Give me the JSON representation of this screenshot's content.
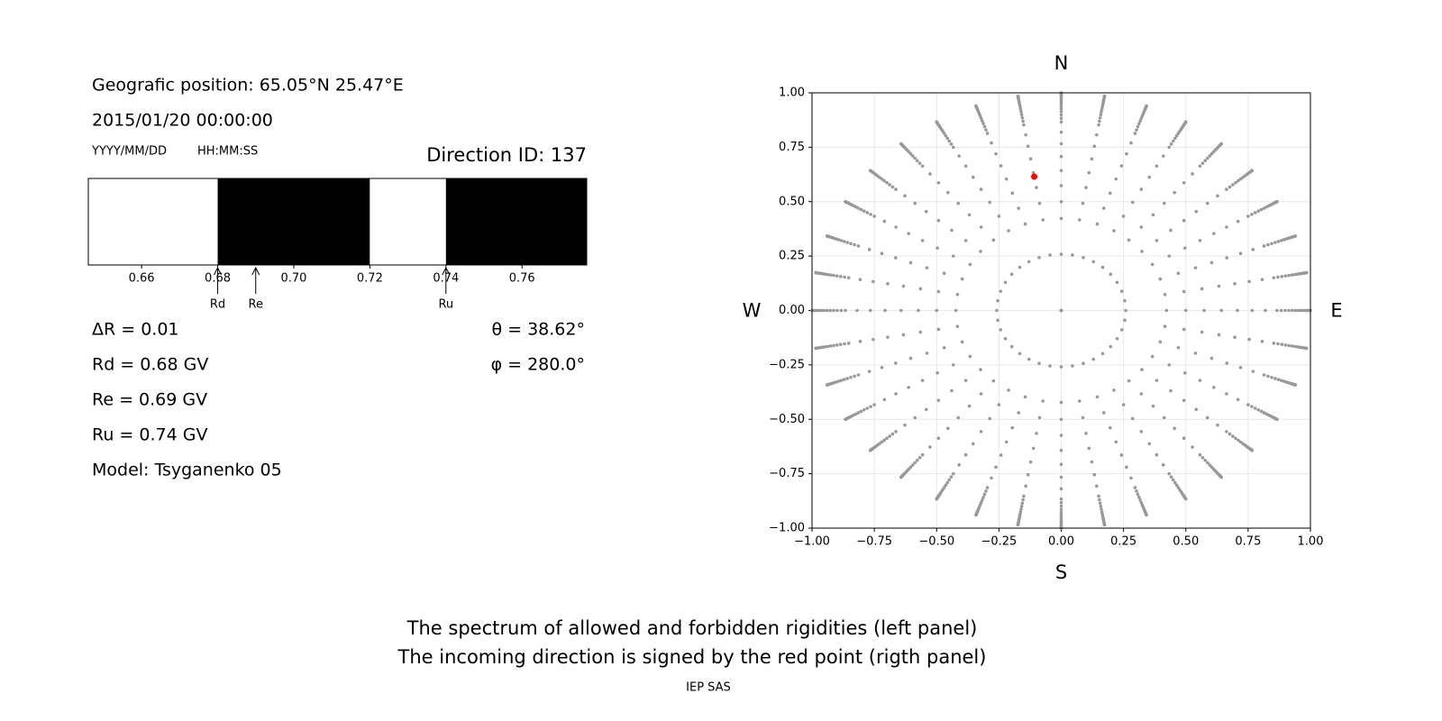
{
  "header": {
    "position": "Geografic position: 65.05°N 25.47°E",
    "datetime": "2015/01/20 00:00:00",
    "date_format": "YYYY/MM/DD",
    "time_format": "HH:MM:SS",
    "direction_id": "Direction ID: 137",
    "delta_r": "ΔR = 0.01",
    "model": "Model: Tsyganenko 05"
  },
  "chart_data": [
    {
      "type": "spectrum",
      "xlim": [
        0.646,
        0.777
      ],
      "xticks": [
        {
          "value": 0.66,
          "label": "0.66"
        },
        {
          "value": 0.68,
          "label": "0.68"
        },
        {
          "value": 0.7,
          "label": "0.70"
        },
        {
          "value": 0.72,
          "label": "0.72"
        },
        {
          "value": 0.74,
          "label": "0.74"
        },
        {
          "value": 0.76,
          "label": "0.76"
        }
      ],
      "bands": [
        {
          "from": 0.646,
          "to": 0.68,
          "color": "#ffffff"
        },
        {
          "from": 0.68,
          "to": 0.72,
          "color": "#000000"
        },
        {
          "from": 0.72,
          "to": 0.74,
          "color": "#ffffff"
        },
        {
          "from": 0.74,
          "to": 0.777,
          "color": "#000000"
        }
      ],
      "markers": [
        {
          "name": "Rd",
          "value": 0.68,
          "label": "Rd = 0.68 GV"
        },
        {
          "name": "Re",
          "value": 0.69,
          "label": "Re = 0.69 GV"
        },
        {
          "name": "Ru",
          "value": 0.74,
          "label": "Ru = 0.74 GV"
        }
      ]
    },
    {
      "type": "skymap",
      "xlim": [
        -1,
        1
      ],
      "ylim": [
        -1,
        1
      ],
      "grid": true,
      "xticks": [
        {
          "value": -1,
          "label": "−1.00"
        },
        {
          "value": -0.75,
          "label": "−0.75"
        },
        {
          "value": -0.5,
          "label": "−0.50"
        },
        {
          "value": -0.25,
          "label": "−0.25"
        },
        {
          "value": 0,
          "label": "0.00"
        },
        {
          "value": 0.25,
          "label": "0.25"
        },
        {
          "value": 0.5,
          "label": "0.50"
        },
        {
          "value": 0.75,
          "label": "0.75"
        },
        {
          "value": 1,
          "label": "1.00"
        }
      ],
      "yticks": [
        {
          "value": -1,
          "label": "−1.00"
        },
        {
          "value": -0.75,
          "label": "−0.75"
        },
        {
          "value": -0.5,
          "label": "−0.50"
        },
        {
          "value": -0.25,
          "label": "−0.25"
        },
        {
          "value": 0,
          "label": "0.00"
        },
        {
          "value": 0.25,
          "label": "0.25"
        },
        {
          "value": 0.5,
          "label": "0.50"
        },
        {
          "value": 0.75,
          "label": "0.75"
        },
        {
          "value": 1,
          "label": "1.00"
        }
      ],
      "compass": {
        "north": "N",
        "south": "S",
        "west": "W",
        "east": "E"
      },
      "grid_points": {
        "color": "#999999",
        "zenith_deg": [
          0,
          15,
          25,
          30,
          35,
          40,
          45,
          50,
          55,
          60,
          62,
          64,
          66,
          68,
          70,
          72,
          74,
          76,
          78,
          80,
          82,
          84,
          86,
          88,
          90
        ],
        "azimuth_deg": [
          0,
          10,
          20,
          30,
          40,
          50,
          60,
          70,
          80,
          90,
          100,
          110,
          120,
          130,
          140,
          150,
          160,
          170,
          180,
          190,
          200,
          210,
          220,
          230,
          240,
          250,
          260,
          270,
          280,
          290,
          300,
          310,
          320,
          330,
          340,
          350
        ]
      },
      "direction": {
        "color": "#ff0000",
        "theta": {
          "value": 38.62,
          "label": "θ = 38.62°"
        },
        "phi": {
          "value": 280.0,
          "label": "φ = 280.0°"
        }
      }
    }
  ],
  "caption": [
    "The spectrum of allowed and forbidden rigidities (left panel)",
    "The incoming direction is signed by the red point (rigth panel)"
  ],
  "footer": "IEP SAS"
}
